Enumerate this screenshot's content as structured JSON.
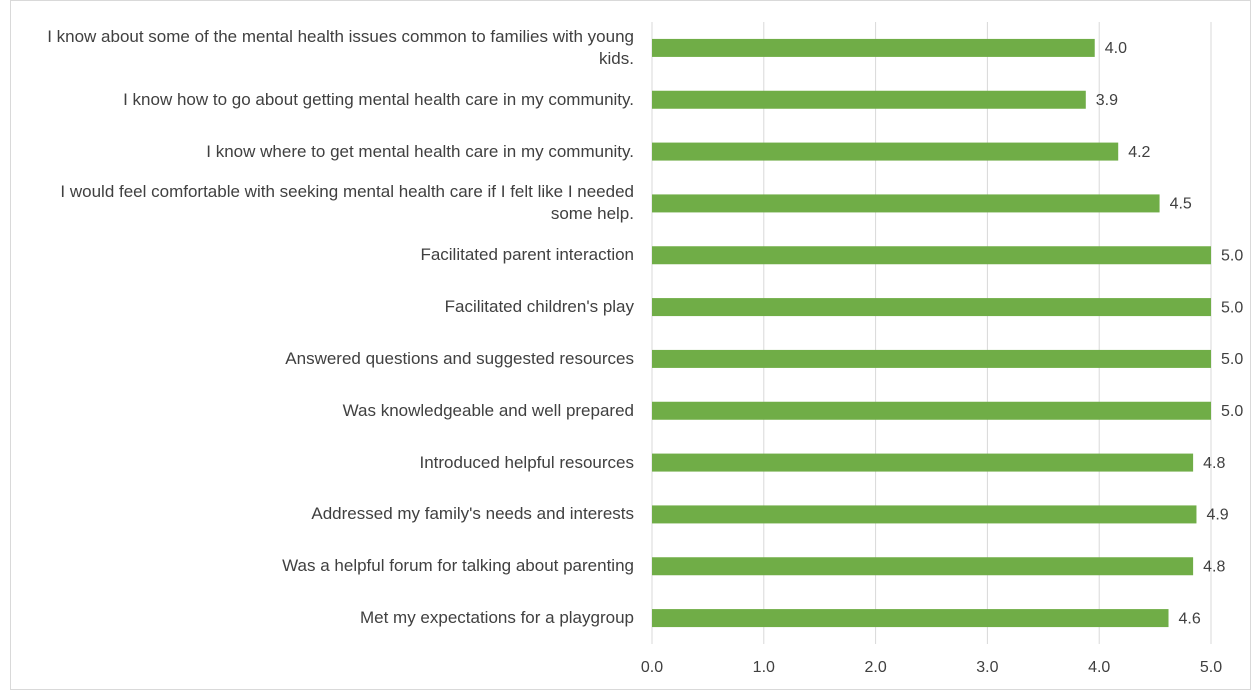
{
  "chart_data": {
    "type": "bar",
    "orientation": "horizontal",
    "categories": [
      "I know about some of the mental health issues common to families with young kids.",
      "I know how to go about getting mental health care in my community.",
      "I know where to get mental health care in my community.",
      "I would feel comfortable with seeking mental health care if I felt like I needed some help.",
      "Facilitated parent interaction",
      "Facilitated children's play",
      "Answered questions and suggested resources",
      "Was knowledgeable and well prepared",
      "Introduced helpful resources",
      "Addressed my family's needs and interests",
      "Was a helpful forum for talking about parenting",
      "Met my expectations for a playgroup"
    ],
    "values": [
      3.96,
      3.88,
      4.17,
      4.54,
      5,
      5,
      5,
      5,
      4.84,
      4.87,
      4.84,
      4.62
    ],
    "value_labels": [
      "4.0",
      "3.9",
      "4.2",
      "4.5",
      "5.0",
      "5.0",
      "5.0",
      "5.0",
      "4.8",
      "4.9",
      "4.8",
      "4.6"
    ],
    "color": "#70ad47",
    "xlim": [
      0,
      5
    ],
    "xticks": [
      {
        "value": 0,
        "label": "0.0"
      },
      {
        "value": 1,
        "label": "1.0"
      },
      {
        "value": 2,
        "label": "2.0"
      },
      {
        "value": 3,
        "label": "3.0"
      },
      {
        "value": 4,
        "label": "4.0"
      },
      {
        "value": 5,
        "label": "5.0"
      }
    ],
    "grid": true
  }
}
